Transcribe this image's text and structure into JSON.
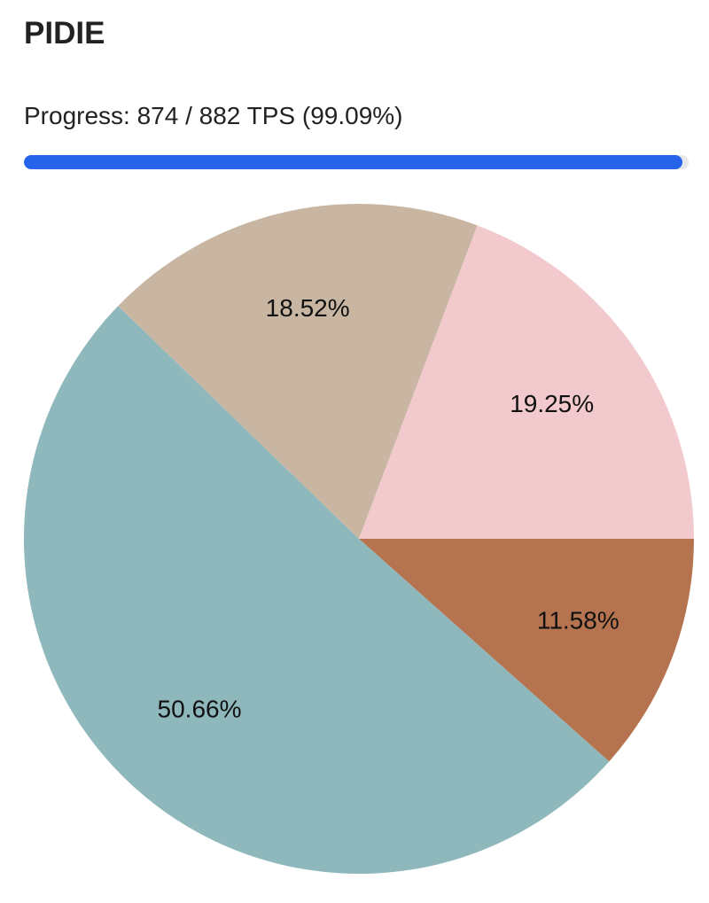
{
  "header": {
    "title": "PIDIE"
  },
  "progress": {
    "label": "Progress: 874 / 882 TPS (99.09%)",
    "value": 99.09,
    "max": 100,
    "color": "#2563eb"
  },
  "chart_data": {
    "type": "pie",
    "values": [
      11.58,
      50.66,
      18.52,
      19.25
    ],
    "value_labels": [
      "11.58%",
      "50.66%",
      "18.52%",
      "19.25%"
    ],
    "colors": [
      "#b5734f",
      "#8fb8bc",
      "#c8b6a3",
      "#f2cacd"
    ]
  }
}
